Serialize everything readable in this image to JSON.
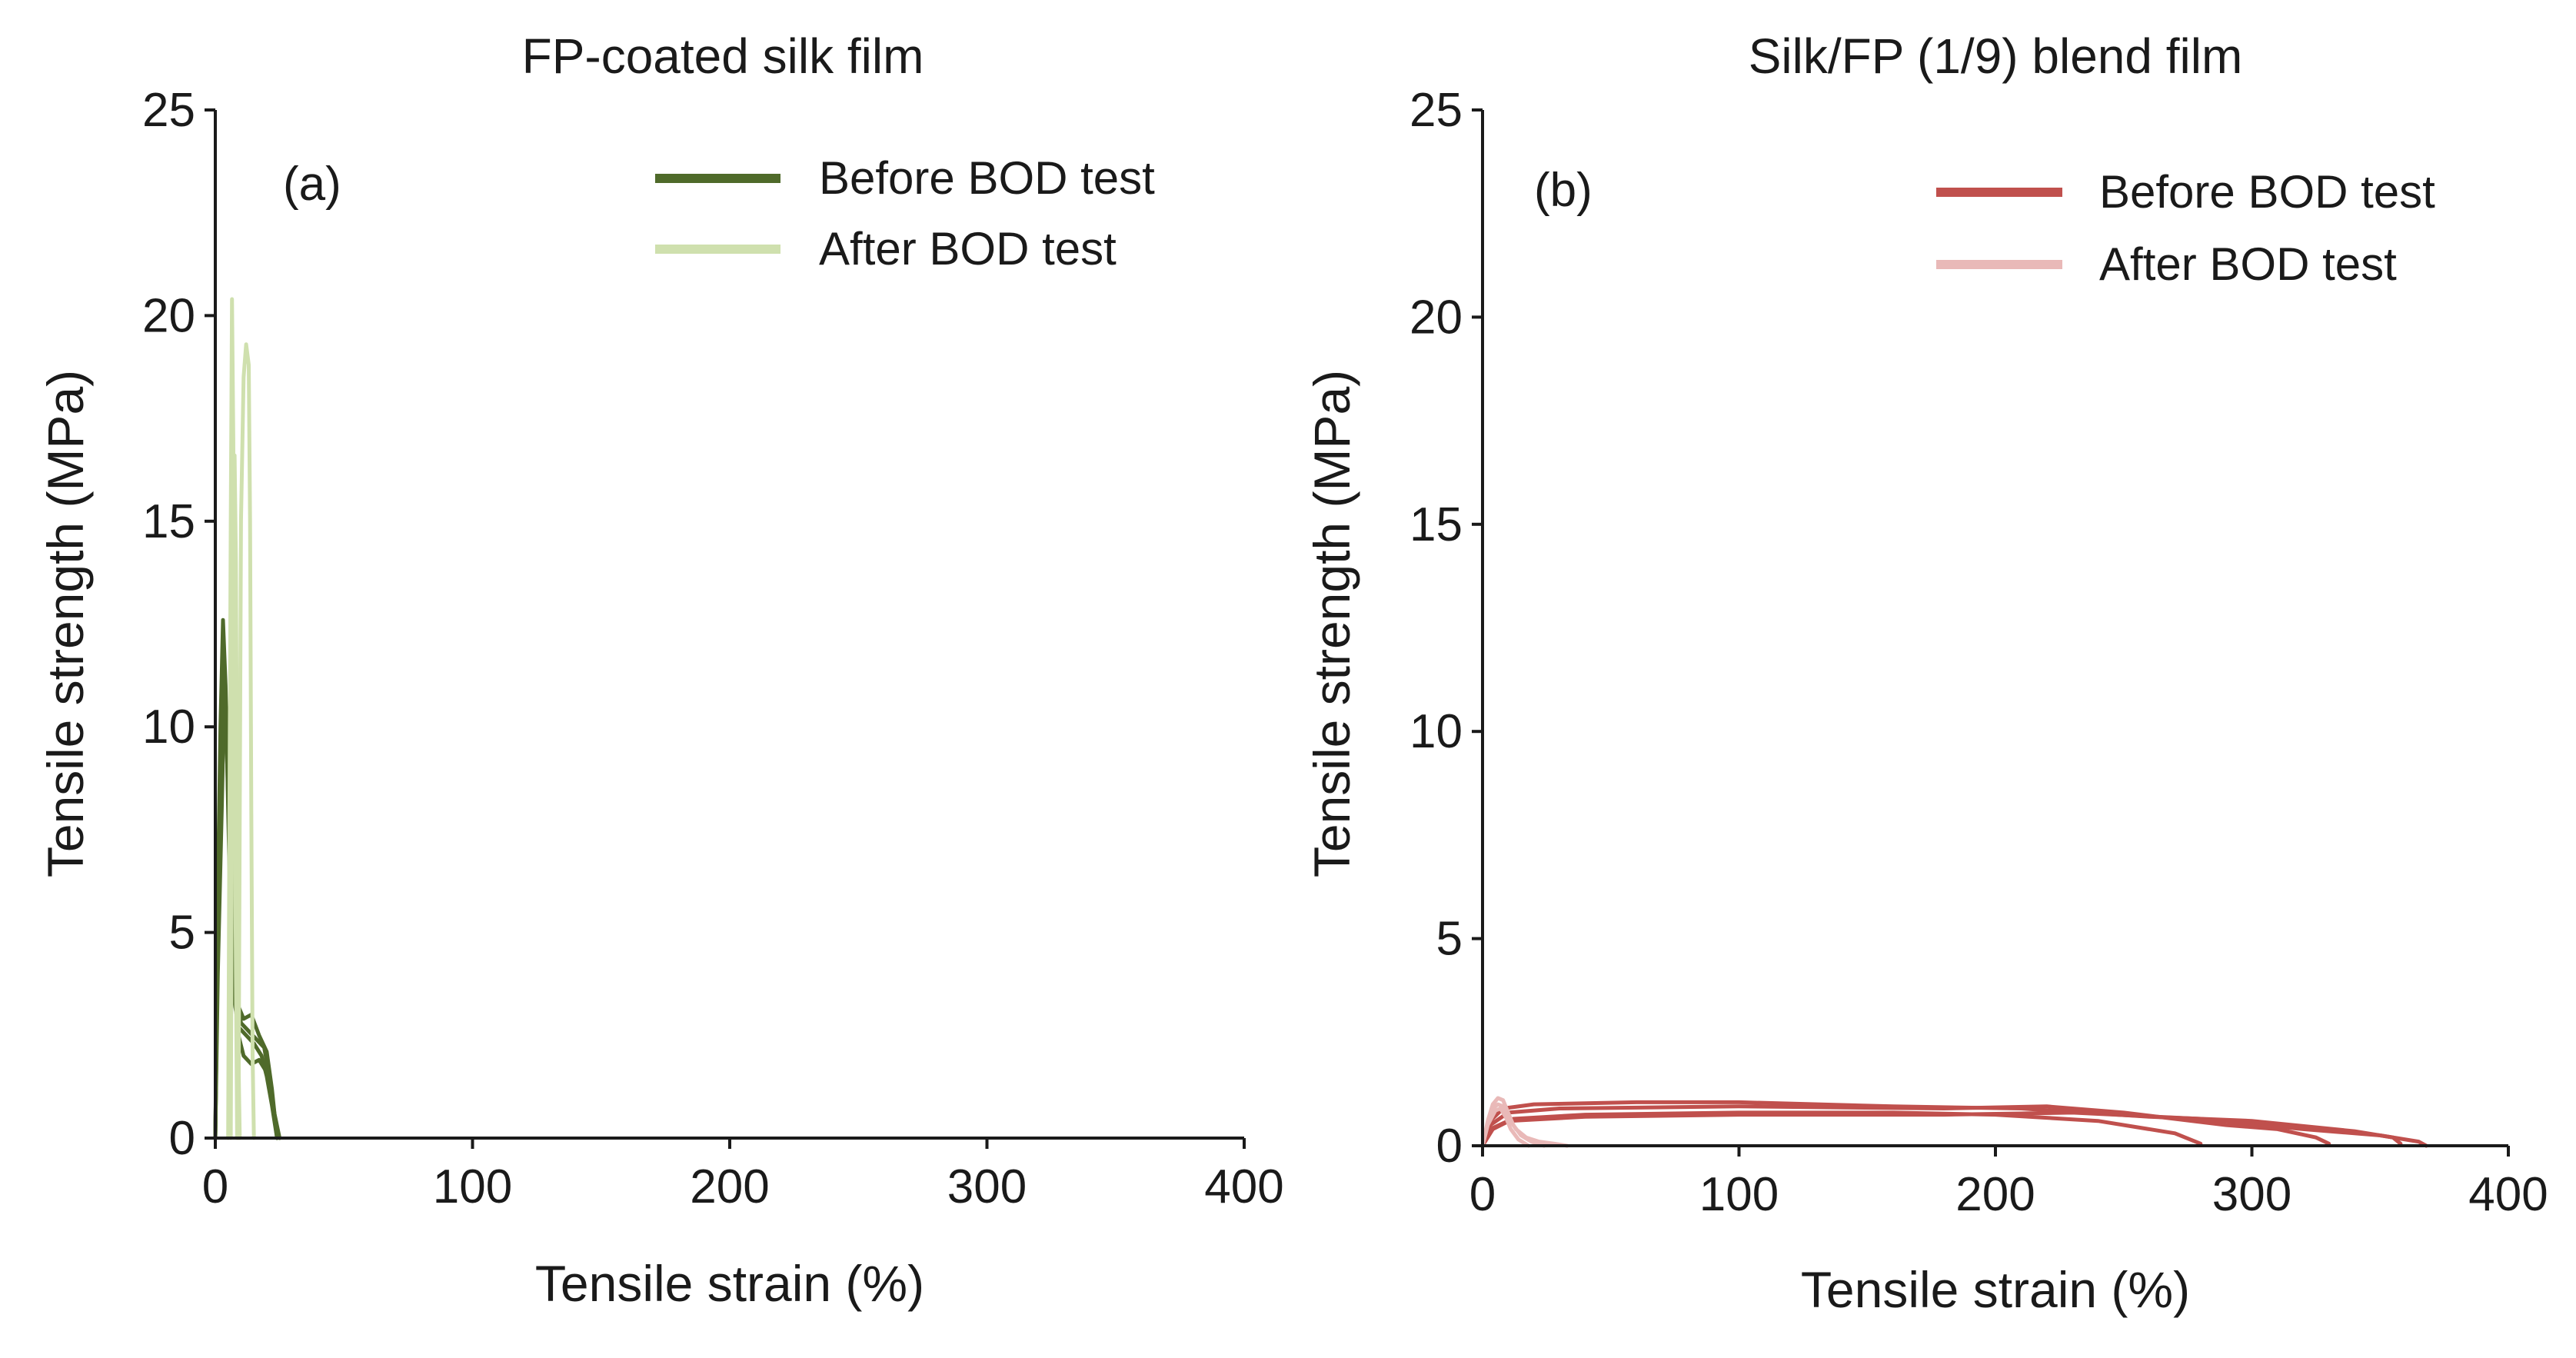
{
  "chart_data": [
    {
      "type": "line",
      "panel_label": "(a)",
      "title": "FP-coated silk film",
      "xlabel": "Tensile strain (%)",
      "ylabel": "Tensile strength (MPa)",
      "xlim": [
        0,
        400
      ],
      "ylim": [
        0,
        25
      ],
      "xticks": [
        "0",
        "100",
        "200",
        "300",
        "400"
      ],
      "yticks": [
        "0",
        "5",
        "10",
        "15",
        "20",
        "25"
      ],
      "legend_position": "top-right",
      "series": [
        {
          "name": "Before BOD test",
          "color": "#4f6a2a",
          "curves": [
            [
              [
                0,
                0
              ],
              [
                1,
                6
              ],
              [
                2,
                10
              ],
              [
                3,
                12.6
              ],
              [
                4,
                11
              ],
              [
                5,
                8
              ],
              [
                6,
                5
              ],
              [
                7,
                3.5
              ],
              [
                9,
                2.7
              ],
              [
                12,
                2.5
              ],
              [
                15,
                2.3
              ],
              [
                18,
                2.0
              ],
              [
                20,
                1.5
              ],
              [
                22,
                0.8
              ],
              [
                24,
                0
              ]
            ],
            [
              [
                0,
                0
              ],
              [
                1,
                5
              ],
              [
                2,
                9
              ],
              [
                3,
                11.5
              ],
              [
                4,
                10.5
              ],
              [
                6,
                6
              ],
              [
                8,
                3.5
              ],
              [
                10,
                2.8
              ],
              [
                13,
                2.6
              ],
              [
                16,
                2.4
              ],
              [
                19,
                2.2
              ],
              [
                21,
                1.5
              ],
              [
                23,
                0.6
              ],
              [
                25,
                0
              ]
            ],
            [
              [
                0,
                0
              ],
              [
                1,
                4
              ],
              [
                2.5,
                8
              ],
              [
                3.5,
                10.8
              ],
              [
                5,
                10
              ],
              [
                7,
                6
              ],
              [
                9,
                3.2
              ],
              [
                11,
                2.9
              ],
              [
                14,
                3.0
              ],
              [
                17,
                2.5
              ],
              [
                20,
                2.1
              ],
              [
                22,
                1.2
              ],
              [
                24,
                0
              ]
            ],
            [
              [
                0,
                0
              ],
              [
                1,
                5
              ],
              [
                2,
                9.5
              ],
              [
                3,
                12
              ],
              [
                5,
                9
              ],
              [
                7,
                4
              ],
              [
                9,
                2.5
              ],
              [
                11,
                2.0
              ],
              [
                14,
                1.8
              ],
              [
                17,
                1.9
              ],
              [
                20,
                1.6
              ],
              [
                23,
                0.5
              ],
              [
                24,
                0
              ]
            ]
          ]
        },
        {
          "name": "After BOD test",
          "color": "#cfe0ae",
          "curves": [
            [
              [
                5,
                0
              ],
              [
                5.5,
                8
              ],
              [
                6,
                15
              ],
              [
                6.5,
                20.4
              ],
              [
                7,
                17
              ],
              [
                7.5,
                10
              ],
              [
                8,
                4
              ],
              [
                8.5,
                0
              ]
            ],
            [
              [
                9,
                0
              ],
              [
                9.5,
                8
              ],
              [
                10,
                15
              ],
              [
                11,
                18.5
              ],
              [
                12,
                19.3
              ],
              [
                13,
                18.8
              ],
              [
                13.5,
                15
              ],
              [
                14,
                8
              ],
              [
                14.5,
                2
              ],
              [
                15,
                0
              ]
            ],
            [
              [
                6,
                0
              ],
              [
                6.5,
                8
              ],
              [
                7,
                14
              ],
              [
                7.5,
                16.6
              ],
              [
                8,
                14
              ],
              [
                8.5,
                8
              ],
              [
                9,
                2
              ],
              [
                9.5,
                0
              ]
            ]
          ]
        }
      ]
    },
    {
      "type": "line",
      "panel_label": "(b)",
      "title": "Silk/FP (1/9) blend film",
      "xlabel": "Tensile strain (%)",
      "ylabel": "Tensile strength (MPa)",
      "xlim": [
        0,
        400
      ],
      "ylim": [
        0,
        25
      ],
      "xticks": [
        "0",
        "100",
        "200",
        "300",
        "400"
      ],
      "yticks": [
        "0",
        "5",
        "10",
        "15",
        "20",
        "25"
      ],
      "legend_position": "top-right",
      "series": [
        {
          "name": "Before BOD test",
          "color": "#c0504d",
          "curves": [
            [
              [
                0,
                0
              ],
              [
                3,
                0.6
              ],
              [
                8,
                0.9
              ],
              [
                20,
                1.0
              ],
              [
                60,
                1.05
              ],
              [
                100,
                1.05
              ],
              [
                160,
                0.95
              ],
              [
                210,
                0.9
              ],
              [
                260,
                0.7
              ],
              [
                300,
                0.6
              ],
              [
                340,
                0.35
              ],
              [
                355,
                0.2
              ],
              [
                358,
                0.05
              ]
            ],
            [
              [
                0,
                0
              ],
              [
                3,
                0.5
              ],
              [
                10,
                0.8
              ],
              [
                30,
                0.9
              ],
              [
                100,
                0.95
              ],
              [
                180,
                0.9
              ],
              [
                220,
                0.95
              ],
              [
                250,
                0.8
              ],
              [
                290,
                0.5
              ],
              [
                310,
                0.4
              ],
              [
                325,
                0.2
              ],
              [
                330,
                0.05
              ]
            ],
            [
              [
                0,
                0
              ],
              [
                4,
                0.4
              ],
              [
                12,
                0.65
              ],
              [
                40,
                0.75
              ],
              [
                100,
                0.8
              ],
              [
                160,
                0.8
              ],
              [
                200,
                0.75
              ],
              [
                240,
                0.6
              ],
              [
                270,
                0.3
              ],
              [
                280,
                0.05
              ]
            ],
            [
              [
                0,
                0
              ],
              [
                3,
                0.4
              ],
              [
                10,
                0.6
              ],
              [
                40,
                0.7
              ],
              [
                100,
                0.75
              ],
              [
                180,
                0.75
              ],
              [
                230,
                0.8
              ],
              [
                280,
                0.65
              ],
              [
                320,
                0.4
              ],
              [
                350,
                0.25
              ],
              [
                365,
                0.1
              ],
              [
                368,
                0
              ]
            ]
          ]
        },
        {
          "name": "After BOD test",
          "color": "#e9b9b8",
          "curves": [
            [
              [
                0,
                0
              ],
              [
                2,
                0.5
              ],
              [
                4,
                0.9
              ],
              [
                6,
                1.0
              ],
              [
                8,
                0.95
              ],
              [
                10,
                0.7
              ],
              [
                13,
                0.4
              ],
              [
                17,
                0.2
              ],
              [
                22,
                0.1
              ],
              [
                28,
                0.05
              ],
              [
                33,
                0
              ]
            ],
            [
              [
                0,
                0
              ],
              [
                2,
                0.6
              ],
              [
                4,
                1.0
              ],
              [
                6,
                1.15
              ],
              [
                8,
                1.1
              ],
              [
                10,
                0.8
              ],
              [
                12,
                0.5
              ],
              [
                15,
                0.25
              ],
              [
                19,
                0.1
              ],
              [
                24,
                0
              ]
            ],
            [
              [
                0,
                0
              ],
              [
                2,
                0.5
              ],
              [
                5,
                0.85
              ],
              [
                7,
                0.9
              ],
              [
                9,
                0.7
              ],
              [
                11,
                0.4
              ],
              [
                14,
                0.15
              ],
              [
                18,
                0
              ]
            ]
          ]
        }
      ]
    }
  ]
}
